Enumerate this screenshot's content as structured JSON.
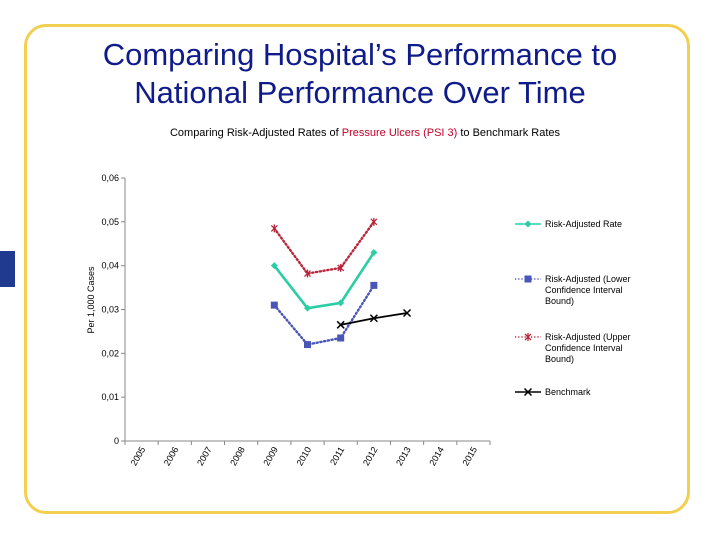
{
  "slide": {
    "title_line1": "Comparing Hospital’s Performance to",
    "title_line2": "National Performance Over Time"
  },
  "chart_title": {
    "prefix": "Comparing Risk-Adjusted Rates of ",
    "highlight": "Pressure Ulcers (PSI 3)",
    "suffix": " to Benchmark Rates"
  },
  "colors": {
    "title": "#101b8a",
    "frame": "#f1cf4f",
    "side_tab": "#1f3a8f",
    "highlight": "#c0002a"
  },
  "chart_data": {
    "type": "line",
    "ylabel": "Per 1,000 Cases",
    "xlabel": "",
    "x": [
      "2005",
      "2006",
      "2007",
      "2008",
      "2009",
      "2010",
      "2011",
      "2012",
      "2013",
      "2014",
      "2015"
    ],
    "ylim": [
      0,
      0.06
    ],
    "y_ticks": [
      "0",
      "0,01",
      "0,02",
      "0,03",
      "0,04",
      "0,05",
      "0,06"
    ],
    "grid": false,
    "legend_position": "right",
    "series": [
      {
        "name": "Risk-Adjusted Rate",
        "color": "#2ccda6",
        "style": "solid",
        "marker": "diamond",
        "x": [
          "2009",
          "2010",
          "2011",
          "2012"
        ],
        "values": [
          0.04,
          0.0303,
          0.0315,
          0.043
        ]
      },
      {
        "name": "Risk-Adjusted (Lower Confidence Interval Bound)",
        "legend_lines": [
          "Risk-Adjusted (Lower",
          "Confidence Interval",
          "Bound)"
        ],
        "color": "#4a55b8",
        "style": "dotted",
        "marker": "square",
        "x": [
          "2009",
          "2010",
          "2011",
          "2012"
        ],
        "values": [
          0.031,
          0.022,
          0.0235,
          0.0355
        ]
      },
      {
        "name": "Risk-Adjusted (Upper Confidence Interval Bound)",
        "legend_lines": [
          "Risk-Adjusted (Upper",
          "Confidence Interval",
          "Bound)"
        ],
        "color": "#b8283c",
        "style": "dotted",
        "marker": "star",
        "x": [
          "2009",
          "2010",
          "2011",
          "2012"
        ],
        "values": [
          0.0485,
          0.0382,
          0.0395,
          0.05
        ]
      },
      {
        "name": "Benchmark",
        "color": "#000000",
        "style": "solid",
        "marker": "x",
        "x": [
          "2011",
          "2012",
          "2013"
        ],
        "values": [
          0.0265,
          0.028,
          0.0292
        ]
      }
    ]
  }
}
